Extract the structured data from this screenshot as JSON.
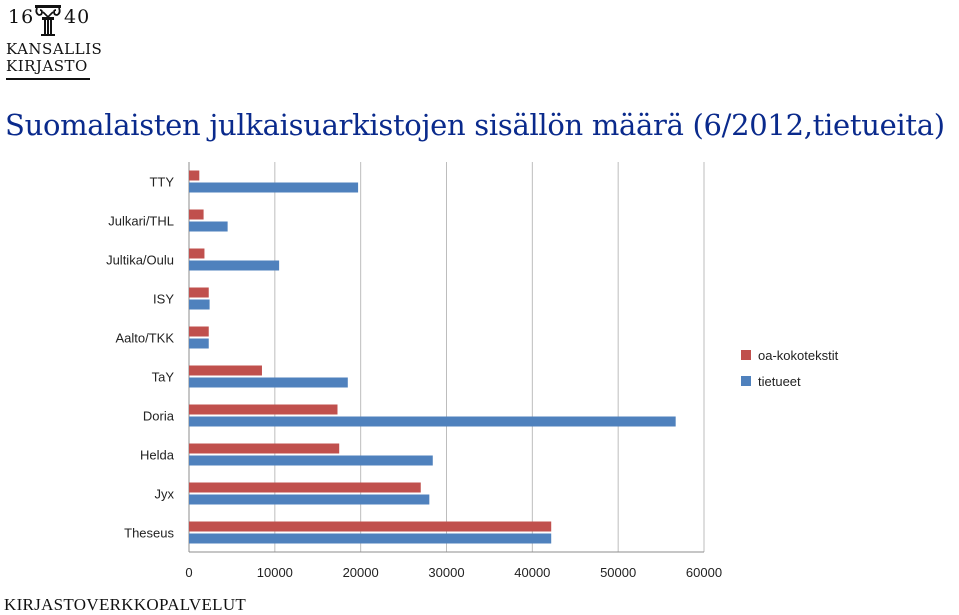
{
  "logo": {
    "year_left": "16",
    "year_right": "40",
    "line1": "KANSALLIS",
    "line2": "KIRJASTO"
  },
  "title": "Suomalaisten julkaisuarkistojen sisällön määrä (6/2012,tietueita)",
  "footer": "KIRJASTOVERKKOPALVELUT",
  "chart_data": {
    "type": "bar",
    "orientation": "horizontal",
    "categories": [
      "TTY",
      "Julkari/THL",
      "Jultika/Oulu",
      "ISY",
      "Aalto/TKK",
      "TaY",
      "Doria",
      "Helda",
      "Jyx",
      "Theseus"
    ],
    "series": [
      {
        "name": "oa-kokotekstit",
        "color": "#c0504d",
        "values": [
          1200,
          1700,
          1800,
          2300,
          2300,
          8500,
          17300,
          17500,
          27000,
          42200
        ]
      },
      {
        "name": "tietueet",
        "color": "#4f81bd",
        "values": [
          19700,
          4500,
          10500,
          2400,
          2300,
          18500,
          56700,
          28400,
          28000,
          42200
        ]
      }
    ],
    "xlim": [
      0,
      60000
    ],
    "xticks": [
      "0",
      "10000",
      "20000",
      "30000",
      "40000",
      "50000",
      "60000"
    ],
    "grid": true,
    "legend_position": "right"
  }
}
